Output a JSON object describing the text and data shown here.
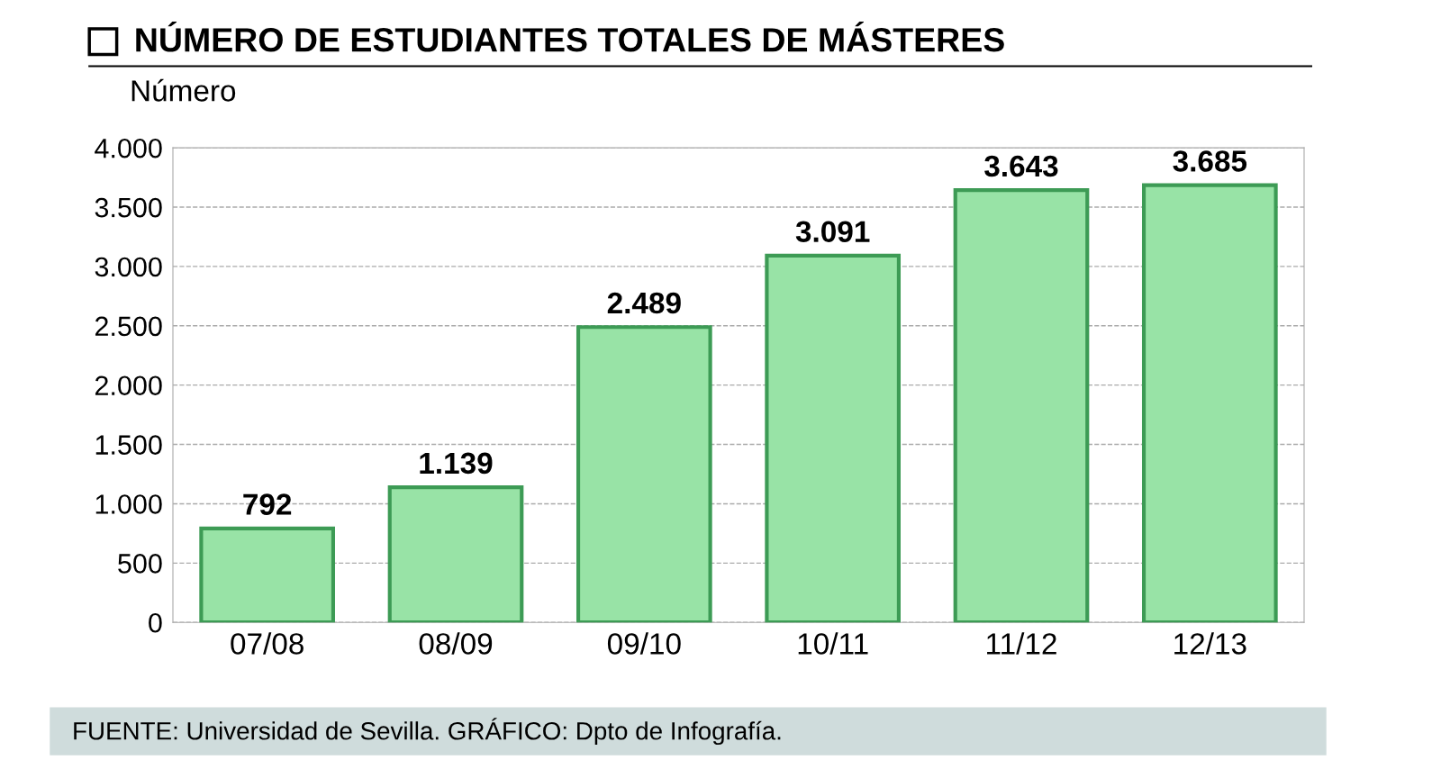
{
  "chart_data": {
    "type": "bar",
    "title": "NÚMERO DE ESTUDIANTES TOTALES DE MÁSTERES",
    "ylabel": "Número",
    "categories": [
      "07/08",
      "08/09",
      "09/10",
      "10/11",
      "11/12",
      "12/13"
    ],
    "values": [
      792,
      1139,
      2489,
      3091,
      3643,
      3685
    ],
    "value_labels": [
      "792",
      "1.139",
      "2.489",
      "3.091",
      "3.643",
      "3.685"
    ],
    "color": "#98e3a6",
    "ylim": [
      0,
      4000
    ],
    "yticks": [
      0,
      500,
      {
        "value": 1000,
        "label": "1.000"
      },
      {
        "value": 1500,
        "label": "1.500"
      },
      {
        "value": 2000,
        "label": "2.000"
      },
      {
        "value": 2500,
        "label": "2.500"
      },
      {
        "value": 3000,
        "label": "3.000"
      },
      {
        "value": 3500,
        "label": "3.500"
      },
      {
        "value": 4000,
        "label": "4.000"
      }
    ],
    "grid": "y",
    "annotations": [
      "FUENTE: Universidad de Sevilla. GRÁFICO: Dpto de Infografía."
    ]
  }
}
